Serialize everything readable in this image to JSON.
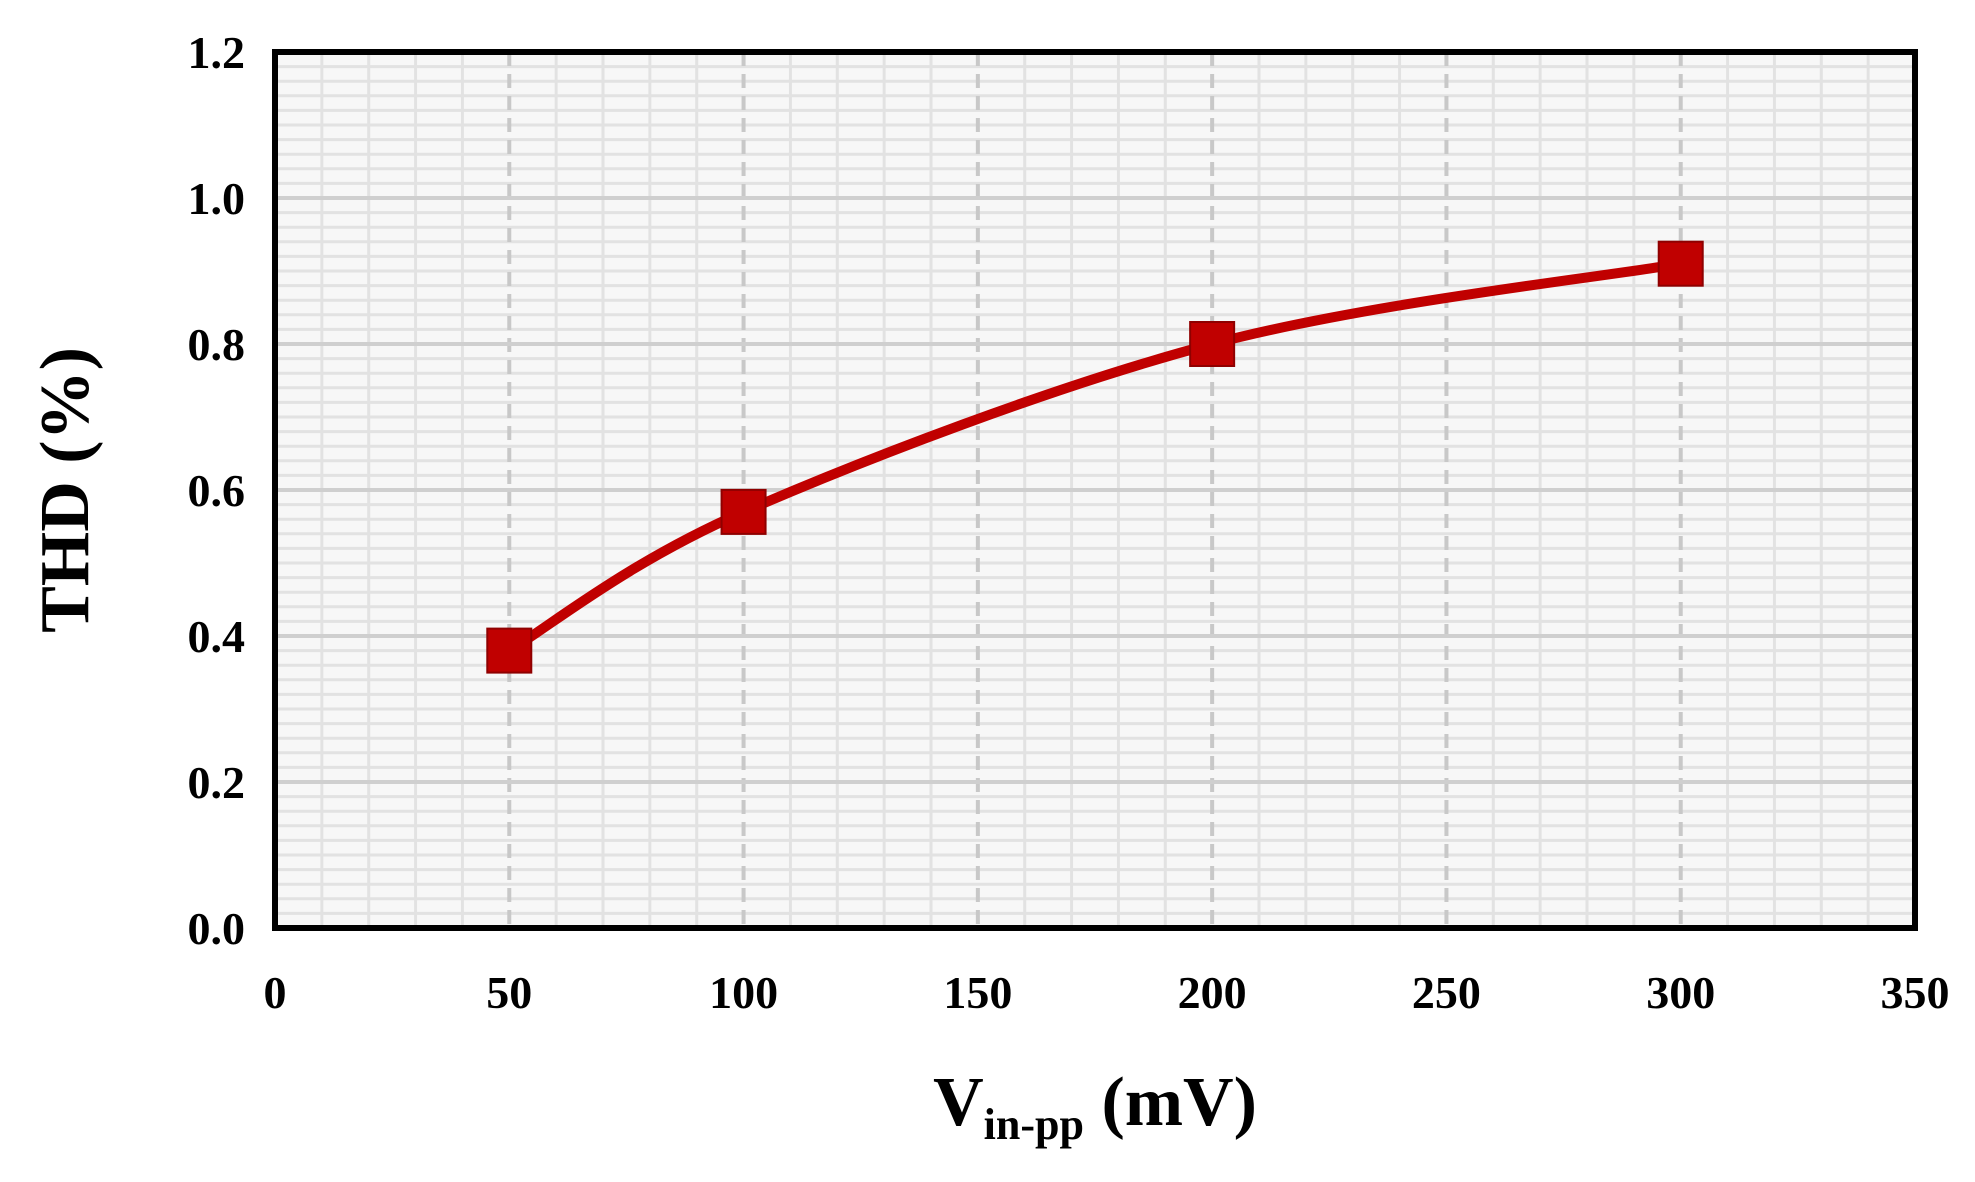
{
  "chart_data": {
    "type": "line",
    "title": "",
    "xlabel_main": "V",
    "xlabel_sub": "in-pp",
    "xlabel_unit": " (mV)",
    "ylabel": "THD (%)",
    "xlim": [
      0,
      350
    ],
    "ylim": [
      0,
      1.2
    ],
    "x_ticks": [
      "0",
      "50",
      "100",
      "150",
      "200",
      "250",
      "300",
      "350"
    ],
    "y_ticks": [
      "0.0",
      "0.2",
      "0.4",
      "0.6",
      "0.8",
      "1.0",
      "1.2"
    ],
    "grid": true,
    "series": [
      {
        "x": [
          50,
          100,
          200,
          300
        ],
        "y": [
          0.38,
          0.57,
          0.8,
          0.91
        ],
        "color": "#c00000",
        "marker": "square",
        "smooth": true
      }
    ]
  }
}
